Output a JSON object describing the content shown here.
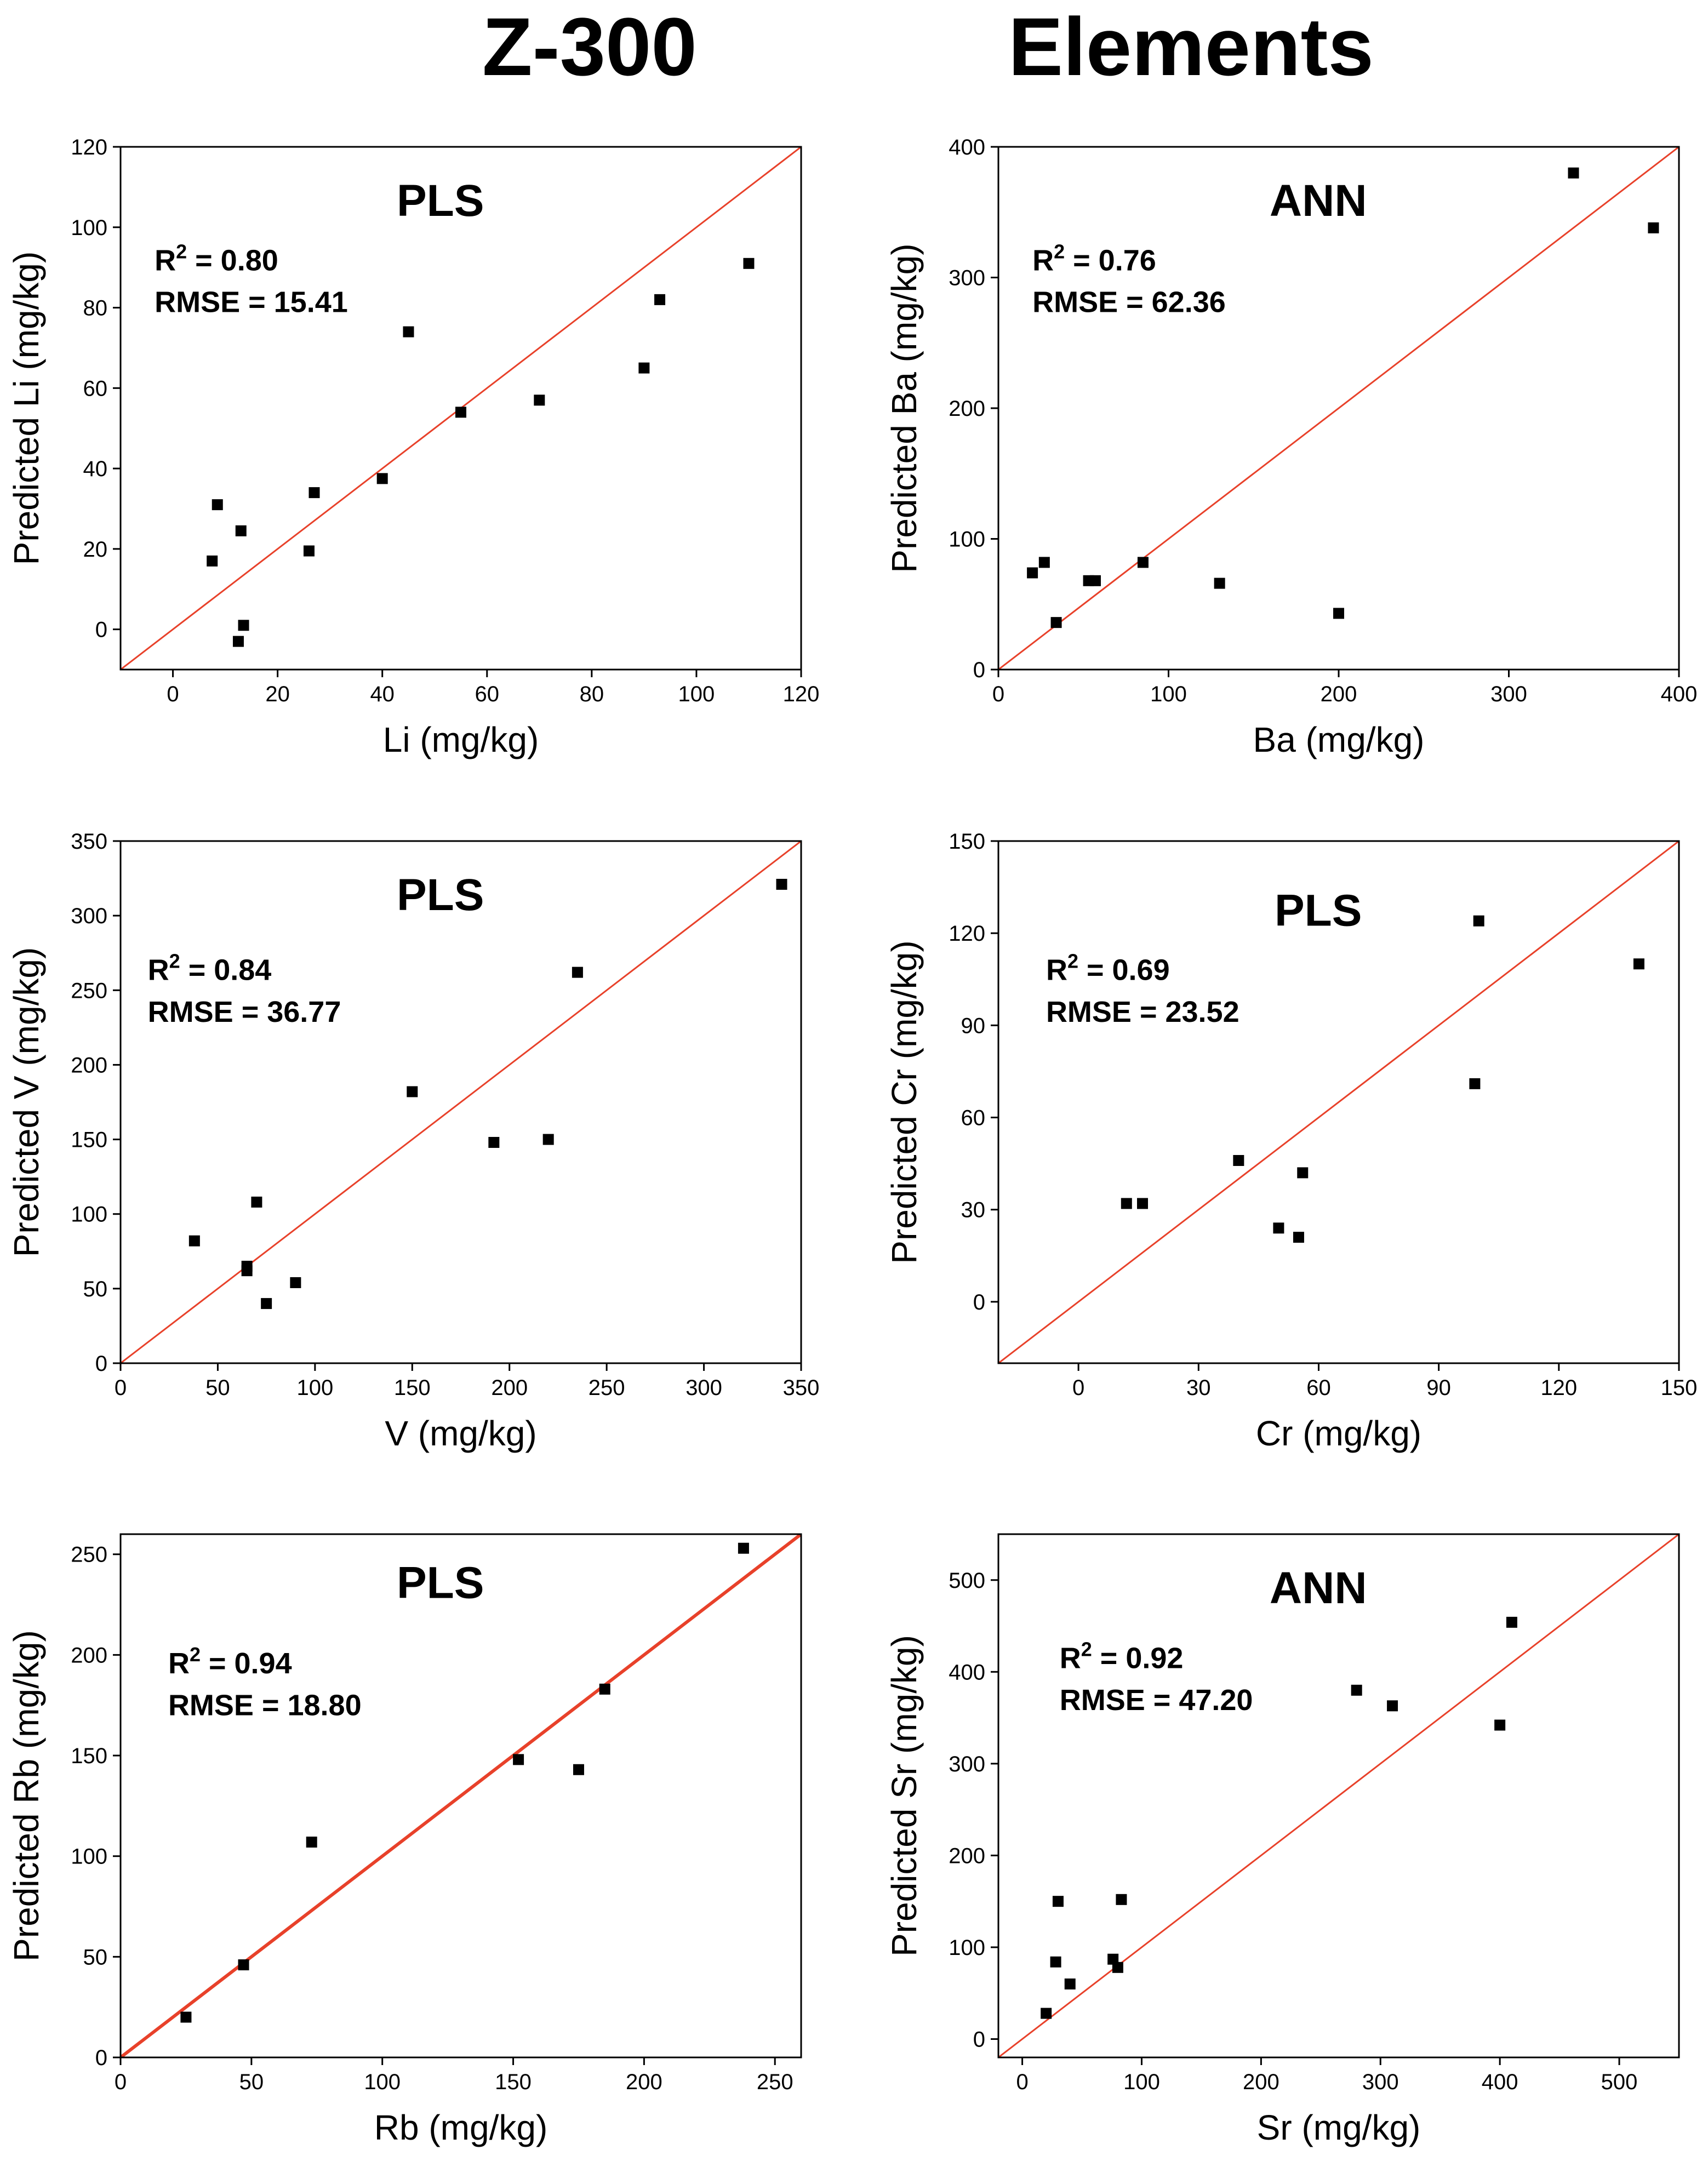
{
  "figure": {
    "title_left": "Z-300",
    "title_right": "Elements"
  },
  "colors": {
    "diagonal": "#e8412a",
    "points": "#000000",
    "axes": "#000000"
  },
  "chart_data": [
    {
      "type": "scatter",
      "method": "PLS",
      "r2_label": "R",
      "r2_exp": "2",
      "r2_value": " = 0.80",
      "rmse": "RMSE = 15.41",
      "xlabel": "Li (mg/kg)",
      "ylabel": "Predicted Li (mg/kg)",
      "xlim": [
        -10,
        120
      ],
      "ylim": [
        -10,
        120
      ],
      "xticks": [
        0,
        20,
        40,
        60,
        80,
        100,
        120
      ],
      "yticks": [
        0,
        20,
        40,
        60,
        80,
        100,
        120
      ],
      "diagonal": true,
      "points": [
        [
          7.5,
          17
        ],
        [
          8.5,
          31
        ],
        [
          12.5,
          -3
        ],
        [
          13,
          24.5
        ],
        [
          13.5,
          1
        ],
        [
          26,
          19.5
        ],
        [
          27,
          34
        ],
        [
          40,
          37.5
        ],
        [
          45,
          74
        ],
        [
          55,
          54
        ],
        [
          70,
          57
        ],
        [
          90,
          65
        ],
        [
          93,
          82
        ],
        [
          110,
          91
        ]
      ]
    },
    {
      "type": "scatter",
      "method": "ANN",
      "r2_label": "R",
      "r2_exp": "2",
      "r2_value": " = 0.76",
      "rmse": "RMSE = 62.36",
      "xlabel": "Ba (mg/kg)",
      "ylabel": "Predicted Ba (mg/kg)",
      "xlim": [
        0,
        400
      ],
      "ylim": [
        0,
        400
      ],
      "xticks": [
        0,
        100,
        200,
        300,
        400
      ],
      "yticks": [
        0,
        100,
        200,
        300,
        400
      ],
      "diagonal": true,
      "points": [
        [
          20,
          74
        ],
        [
          27,
          82
        ],
        [
          34,
          36
        ],
        [
          53,
          68
        ],
        [
          57,
          68
        ],
        [
          85,
          82
        ],
        [
          130,
          66
        ],
        [
          200,
          43
        ],
        [
          338,
          380
        ],
        [
          385,
          338
        ]
      ]
    },
    {
      "type": "scatter",
      "method": "PLS",
      "r2_label": "R",
      "r2_exp": "2",
      "r2_value": " = 0.84",
      "rmse": "RMSE = 36.77",
      "xlabel": "V (mg/kg)",
      "ylabel": "Predicted V (mg/kg)",
      "xlim": [
        0,
        350
      ],
      "ylim": [
        0,
        350
      ],
      "xticks": [
        0,
        50,
        100,
        150,
        200,
        250,
        300,
        350
      ],
      "yticks": [
        0,
        50,
        100,
        150,
        200,
        250,
        300,
        350
      ],
      "diagonal": true,
      "points": [
        [
          38,
          82
        ],
        [
          65,
          65
        ],
        [
          65,
          62
        ],
        [
          70,
          108
        ],
        [
          75,
          40
        ],
        [
          90,
          54
        ],
        [
          150,
          182
        ],
        [
          192,
          148
        ],
        [
          220,
          150
        ],
        [
          235,
          262
        ],
        [
          340,
          321
        ]
      ]
    },
    {
      "type": "scatter",
      "method": "PLS",
      "r2_label": "R",
      "r2_exp": "2",
      "r2_value": " = 0.69",
      "rmse": "RMSE = 23.52",
      "xlabel": "Cr (mg/kg)",
      "ylabel": "Predicted Cr (mg/kg)",
      "xlim": [
        -20,
        150
      ],
      "ylim": [
        -20,
        150
      ],
      "xticks": [
        0,
        30,
        60,
        90,
        120,
        150
      ],
      "yticks": [
        0,
        30,
        60,
        90,
        120,
        150
      ],
      "diagonal": true,
      "points": [
        [
          12,
          32
        ],
        [
          16,
          32
        ],
        [
          40,
          46
        ],
        [
          50,
          24
        ],
        [
          55,
          21
        ],
        [
          56,
          42
        ],
        [
          99,
          71
        ],
        [
          100,
          124
        ],
        [
          140,
          110
        ]
      ]
    },
    {
      "type": "scatter",
      "method": "PLS",
      "r2_label": "R",
      "r2_exp": "2",
      "r2_value": " = 0.94",
      "rmse": "RMSE = 18.80",
      "xlabel": "Rb (mg/kg)",
      "ylabel": "Predicted Rb (mg/kg)",
      "xlim": [
        0,
        260
      ],
      "ylim": [
        0,
        260
      ],
      "xticks": [
        0,
        50,
        100,
        150,
        200,
        250
      ],
      "yticks": [
        0,
        50,
        100,
        150,
        200,
        250
      ],
      "diagonal": true,
      "diagonal_thick": true,
      "points": [
        [
          25,
          20
        ],
        [
          47,
          46
        ],
        [
          73,
          107
        ],
        [
          152,
          148
        ],
        [
          175,
          143
        ],
        [
          185,
          183
        ],
        [
          238,
          253
        ]
      ]
    },
    {
      "type": "scatter",
      "method": "ANN",
      "r2_label": "R",
      "r2_exp": "2",
      "r2_value": " = 0.92",
      "rmse": "RMSE = 47.20",
      "xlabel": "Sr (mg/kg)",
      "ylabel": "Predicted Sr (mg/kg)",
      "xlim": [
        -20,
        550
      ],
      "ylim": [
        -20,
        550
      ],
      "xticks": [
        0,
        100,
        200,
        300,
        400,
        500
      ],
      "yticks": [
        0,
        100,
        200,
        300,
        400,
        500
      ],
      "diagonal": true,
      "points": [
        [
          20,
          28
        ],
        [
          28,
          84
        ],
        [
          30,
          150
        ],
        [
          40,
          60
        ],
        [
          76,
          87
        ],
        [
          80,
          78
        ],
        [
          83,
          152
        ],
        [
          280,
          380
        ],
        [
          310,
          363
        ],
        [
          400,
          342
        ],
        [
          410,
          454
        ]
      ]
    }
  ]
}
